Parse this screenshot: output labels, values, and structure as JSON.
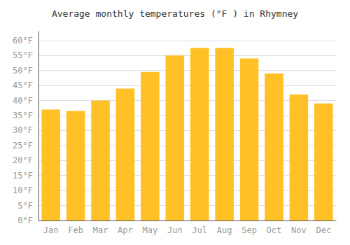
{
  "chart_data": {
    "type": "bar",
    "title": "Average monthly temperatures (°F ) in Rhymney",
    "categories": [
      "Jan",
      "Feb",
      "Mar",
      "Apr",
      "May",
      "Jun",
      "Jul",
      "Aug",
      "Sep",
      "Oct",
      "Nov",
      "Dec"
    ],
    "values": [
      37,
      36.5,
      40,
      44,
      49.5,
      55,
      57.5,
      57.5,
      54,
      49,
      42,
      39
    ],
    "color": "#FFC125",
    "ylim": [
      0,
      63
    ],
    "yticks": [
      {
        "value": 0,
        "label": "0°F"
      },
      {
        "value": 5,
        "label": "5°F"
      },
      {
        "value": 10,
        "label": "10°F"
      },
      {
        "value": 15,
        "label": "15°F"
      },
      {
        "value": 20,
        "label": "20°F"
      },
      {
        "value": 25,
        "label": "25°F"
      },
      {
        "value": 30,
        "label": "30°F"
      },
      {
        "value": 35,
        "label": "35°F"
      },
      {
        "value": 40,
        "label": "40°F"
      },
      {
        "value": 45,
        "label": "45°F"
      },
      {
        "value": 50,
        "label": "50°F"
      },
      {
        "value": 55,
        "label": "55°F"
      },
      {
        "value": 60,
        "label": "60°F"
      }
    ],
    "grid": true
  }
}
